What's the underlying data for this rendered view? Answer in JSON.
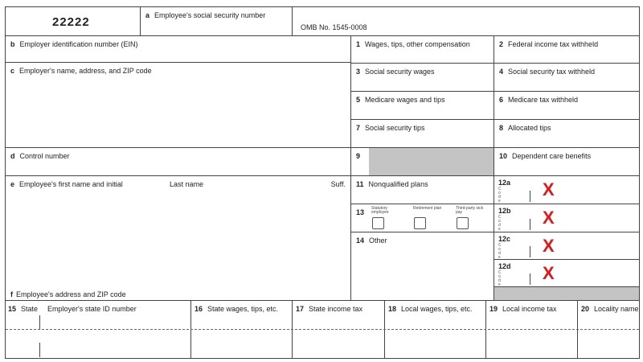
{
  "form_code": "22222",
  "box_a": {
    "letter": "a",
    "label": "Employee's social security number"
  },
  "omb": "OMB No. 1545-0008",
  "box_b": {
    "letter": "b",
    "label": "Employer identification number (EIN)"
  },
  "box_c": {
    "letter": "c",
    "label": "Employer's name, address, and ZIP code"
  },
  "box_d": {
    "letter": "d",
    "label": "Control number"
  },
  "box_e": {
    "letter": "e",
    "label": "Employee's first name and initial",
    "last": "Last name",
    "suff": "Suff."
  },
  "box_f": {
    "letter": "f",
    "label": "Employee's address and ZIP code"
  },
  "right_boxes": [
    {
      "num": "1",
      "label": "Wages, tips, other compensation"
    },
    {
      "num": "2",
      "label": "Federal income tax withheld"
    },
    {
      "num": "3",
      "label": "Social security wages"
    },
    {
      "num": "4",
      "label": "Social security tax withheld"
    },
    {
      "num": "5",
      "label": "Medicare wages and tips"
    },
    {
      "num": "6",
      "label": "Medicare tax withheld"
    },
    {
      "num": "7",
      "label": "Social security tips"
    },
    {
      "num": "8",
      "label": "Allocated tips"
    },
    {
      "num": "9",
      "label": ""
    },
    {
      "num": "10",
      "label": "Dependent care benefits"
    },
    {
      "num": "11",
      "label": "Nonqualified plans"
    },
    {
      "num": "14",
      "label": "Other"
    }
  ],
  "box13": {
    "num": "13",
    "options": [
      "Statutory employee",
      "Retirement plan",
      "Third-party sick pay"
    ]
  },
  "box12": [
    {
      "label": "12a",
      "mark": "X"
    },
    {
      "label": "12b",
      "mark": "X"
    },
    {
      "label": "12c",
      "mark": "X"
    },
    {
      "label": "12d",
      "mark": "X"
    }
  ],
  "code_letters": "C\no\nd\ne",
  "bottom": [
    {
      "num": "15",
      "label": "State",
      "label2": "Employer's state ID number"
    },
    {
      "num": "16",
      "label": "State wages, tips, etc."
    },
    {
      "num": "17",
      "label": "State income tax"
    },
    {
      "num": "18",
      "label": "Local wages, tips, etc."
    },
    {
      "num": "19",
      "label": "Local income tax"
    },
    {
      "num": "20",
      "label": "Locality name"
    }
  ]
}
